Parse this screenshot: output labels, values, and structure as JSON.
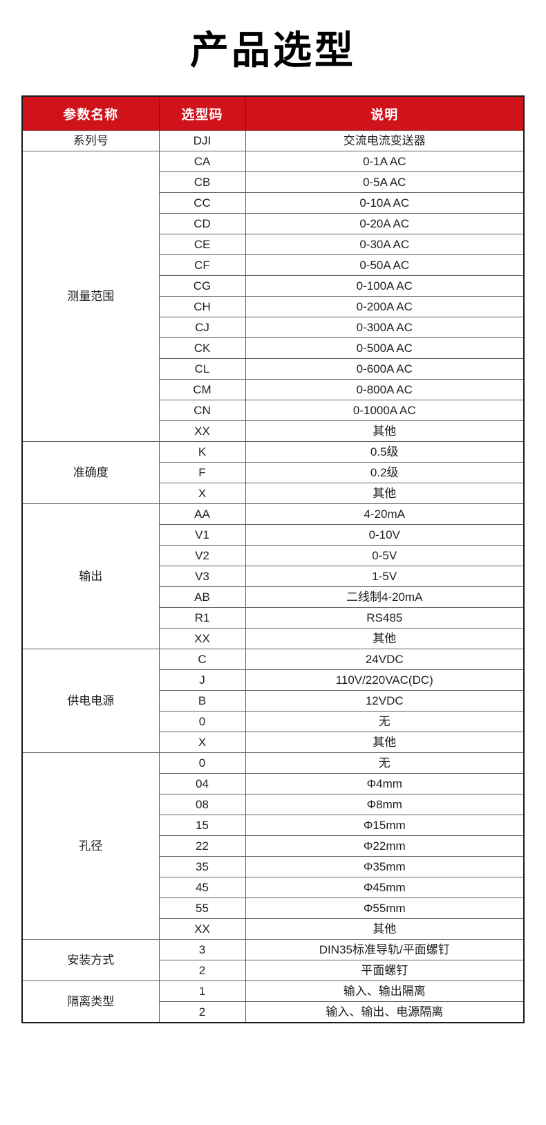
{
  "page": {
    "title": "产品选型"
  },
  "colors": {
    "header_bg": "#d0121b",
    "header_text": "#ffffff",
    "outer_border": "#1a1a1a",
    "inner_border": "#5f5f5f",
    "body_text": "#1f1f1f",
    "page_bg": "#ffffff"
  },
  "table": {
    "headers": [
      "参数名称",
      "选型码",
      "说明"
    ],
    "groups": [
      {
        "name": "系列号",
        "rows": [
          [
            "DJI",
            "交流电流变送器"
          ]
        ]
      },
      {
        "name": "测量范围",
        "rows": [
          [
            "CA",
            "0-1A AC"
          ],
          [
            "CB",
            "0-5A AC"
          ],
          [
            "CC",
            "0-10A AC"
          ],
          [
            "CD",
            "0-20A AC"
          ],
          [
            "CE",
            "0-30A AC"
          ],
          [
            "CF",
            "0-50A AC"
          ],
          [
            "CG",
            "0-100A AC"
          ],
          [
            "CH",
            "0-200A AC"
          ],
          [
            "CJ",
            "0-300A AC"
          ],
          [
            "CK",
            "0-500A AC"
          ],
          [
            "CL",
            "0-600A AC"
          ],
          [
            "CM",
            "0-800A AC"
          ],
          [
            "CN",
            "0-1000A AC"
          ],
          [
            "XX",
            "其他"
          ]
        ]
      },
      {
        "name": "准确度",
        "rows": [
          [
            "K",
            "0.5级"
          ],
          [
            "F",
            "0.2级"
          ],
          [
            "X",
            "其他"
          ]
        ]
      },
      {
        "name": "输出",
        "rows": [
          [
            "AA",
            "4-20mA"
          ],
          [
            "V1",
            "0-10V"
          ],
          [
            "V2",
            "0-5V"
          ],
          [
            "V3",
            "1-5V"
          ],
          [
            "AB",
            "二线制4-20mA"
          ],
          [
            "R1",
            "RS485"
          ],
          [
            "XX",
            "其他"
          ]
        ]
      },
      {
        "name": "供电电源",
        "rows": [
          [
            "C",
            "24VDC"
          ],
          [
            "J",
            "110V/220VAC(DC)"
          ],
          [
            "B",
            "12VDC"
          ],
          [
            "0",
            "无"
          ],
          [
            "X",
            "其他"
          ]
        ]
      },
      {
        "name": "孔径",
        "rows": [
          [
            "0",
            "无"
          ],
          [
            "04",
            "Φ4mm"
          ],
          [
            "08",
            "Φ8mm"
          ],
          [
            "15",
            "Φ15mm"
          ],
          [
            "22",
            "Φ22mm"
          ],
          [
            "35",
            "Φ35mm"
          ],
          [
            "45",
            "Φ45mm"
          ],
          [
            "55",
            "Φ55mm"
          ],
          [
            "XX",
            "其他"
          ]
        ]
      },
      {
        "name": "安装方式",
        "rows": [
          [
            "3",
            "DIN35标准导轨/平面螺钉"
          ],
          [
            "2",
            "平面螺钉"
          ]
        ]
      },
      {
        "name": "隔离类型",
        "rows": [
          [
            "1",
            "输入、输出隔离"
          ],
          [
            "2",
            "输入、输出、电源隔离"
          ]
        ]
      }
    ]
  }
}
